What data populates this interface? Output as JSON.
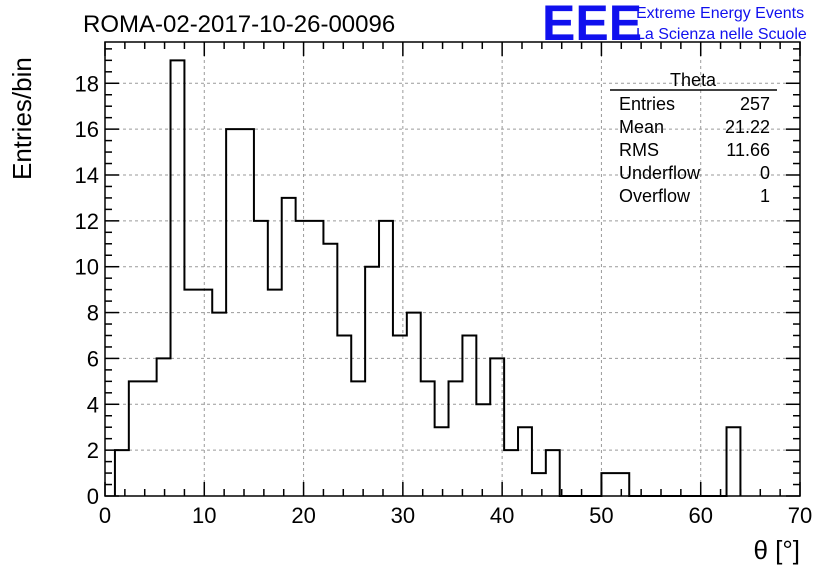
{
  "title": "ROMA-02-2017-10-26-00096",
  "logo": {
    "mark": "EEE",
    "line1": "Extreme Energy Events",
    "line2": "La Scienza nelle Scuole",
    "color": "#1010ee"
  },
  "stats": {
    "name": "Theta",
    "rows": [
      {
        "label": "Entries",
        "value": "257"
      },
      {
        "label": "Mean",
        "value": "21.22"
      },
      {
        "label": "RMS",
        "value": "11.66"
      },
      {
        "label": "Underflow",
        "value": "0"
      },
      {
        "label": "Overflow",
        "value": "1"
      }
    ]
  },
  "chart_data": {
    "type": "bar",
    "histogram": true,
    "xlabel": "θ [°]",
    "ylabel": "Entries/bin",
    "xlim": [
      0,
      70
    ],
    "ylim": [
      0,
      19.8
    ],
    "grid": true,
    "bin_width": 1.4,
    "x_bin_edges_start": 1.0,
    "values": [
      2,
      5,
      5,
      6,
      19,
      9,
      9,
      8,
      16,
      16,
      12,
      9,
      13,
      12,
      12,
      11,
      7,
      5,
      10,
      12,
      7,
      8,
      5,
      3,
      5,
      7,
      4,
      6,
      2,
      3,
      1,
      2,
      0,
      0,
      0,
      1,
      1,
      0,
      0,
      0,
      0,
      0,
      0,
      0,
      3
    ],
    "xticks": [
      0,
      10,
      20,
      30,
      40,
      50,
      60,
      70
    ],
    "yticks": [
      0,
      2,
      4,
      6,
      8,
      10,
      12,
      14,
      16,
      18
    ]
  }
}
